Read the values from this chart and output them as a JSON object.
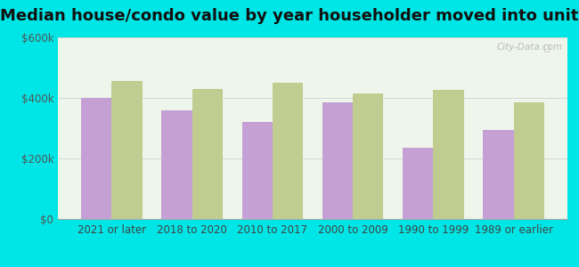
{
  "title": "Median house/condo value by year householder moved into unit",
  "categories": [
    "2021 or later",
    "2018 to 2020",
    "2010 to 2017",
    "2000 to 2009",
    "1990 to 1999",
    "1989 or earlier"
  ],
  "east_orange_values": [
    400000,
    360000,
    320000,
    385000,
    235000,
    295000
  ],
  "new_jersey_values": [
    455000,
    430000,
    450000,
    415000,
    425000,
    385000
  ],
  "east_orange_color": "#c4a0d4",
  "new_jersey_color": "#c0cc90",
  "background_outer": "#00e5e5",
  "background_inner": "#eef5ea",
  "ylim": [
    0,
    600000
  ],
  "yticks": [
    0,
    200000,
    400000,
    600000
  ],
  "ytick_labels": [
    "$0",
    "$200k",
    "$400k",
    "$600k"
  ],
  "bar_width": 0.38,
  "title_fontsize": 13,
  "tick_fontsize": 8.5,
  "legend_fontsize": 10,
  "watermark_text": "City-Data.com"
}
